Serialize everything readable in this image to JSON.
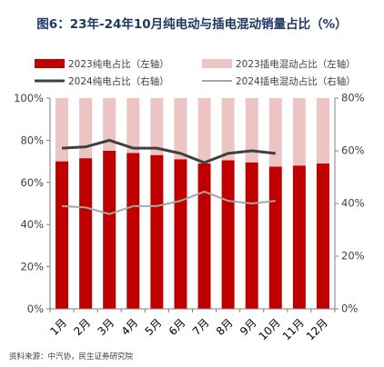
{
  "chart_data": {
    "type": "bar",
    "title": "图6：23年-24年10月纯电动与插电混动销量占比（%）",
    "categories": [
      "1月",
      "2月",
      "3月",
      "4月",
      "5月",
      "6月",
      "7月",
      "8月",
      "9月",
      "10月",
      "11月",
      "12月"
    ],
    "series": [
      {
        "name": "2023纯电占比（左轴）",
        "kind": "bar",
        "axis": "left",
        "color": "#c00000",
        "values": [
          70,
          71.5,
          75,
          74,
          73,
          71,
          69,
          70.5,
          69.5,
          67.5,
          68,
          69
        ]
      },
      {
        "name": "2023插电混动占比（左轴）",
        "kind": "bar",
        "axis": "left",
        "color": "#ecc4c4",
        "values": [
          30,
          28.5,
          25,
          26,
          27,
          29,
          31,
          29.5,
          30.5,
          32.5,
          32,
          31
        ]
      },
      {
        "name": "2024纯电占比（右轴）",
        "kind": "line",
        "axis": "right",
        "color": "#404040",
        "values": [
          61,
          61.5,
          64,
          61,
          61,
          59,
          55.5,
          59,
          60,
          59,
          null,
          null
        ]
      },
      {
        "name": "2024插电混动占比（右轴）",
        "kind": "line",
        "axis": "right",
        "color": "#a6a6a6",
        "values": [
          39,
          38.5,
          36,
          39,
          39,
          41,
          44.5,
          41,
          40,
          41,
          null,
          null
        ]
      }
    ],
    "y_left": {
      "min": 0,
      "max": 100,
      "ticks": [
        0,
        20,
        40,
        60,
        80,
        100
      ],
      "unit": "%"
    },
    "y_right": {
      "min": 0,
      "max": 80,
      "ticks": [
        0,
        20,
        40,
        60,
        80
      ],
      "unit": "%"
    },
    "legend_position": "top",
    "grid": false
  },
  "source": "资料来源：中汽协，民生证券研究院"
}
